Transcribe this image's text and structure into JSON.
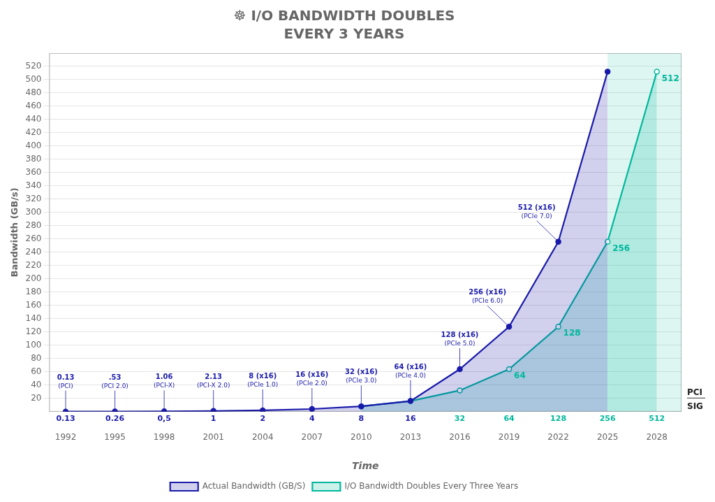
{
  "chart_data": {
    "type": "line",
    "title": "☸ I/O BANDWIDTH DOUBLES",
    "subtitle": "EVERY 3 YEARS",
    "xlabel": "Time",
    "ylabel": "Bandwidth (GB/s)",
    "series": [
      {
        "name": "Actual Bandwidth (GB/S)",
        "type": "area",
        "color": "#1a1aaa",
        "marker": "circle",
        "x": [
          1992,
          1995,
          1998,
          2001,
          2004,
          2007,
          2010,
          2013,
          2016,
          2019,
          2022,
          2025
        ],
        "values": [
          0.13,
          0.26,
          0.5,
          1,
          2,
          4,
          8,
          16,
          64,
          128,
          256,
          512
        ]
      },
      {
        "name": "I/O Bandwidth Doubles Every Three Years",
        "type": "area",
        "color": "#00b89c",
        "marker": "hollow_circle",
        "x": [
          2010,
          2013,
          2016,
          2019,
          2022,
          2025,
          2028
        ],
        "values": [
          8,
          16,
          32,
          64,
          128,
          256,
          512
        ]
      }
    ],
    "xlim": [
      1991,
      2029.5
    ],
    "ylim": [
      0,
      540
    ],
    "xticks": [
      1992,
      1995,
      1998,
      2001,
      2004,
      2007,
      2010,
      2013,
      2016,
      2019,
      2022,
      2025,
      2028
    ],
    "yticks": [
      20,
      40,
      60,
      80,
      100,
      120,
      140,
      160,
      180,
      200,
      220,
      240,
      260,
      280,
      300,
      320,
      340,
      360,
      380,
      400,
      420,
      440,
      460,
      480,
      500,
      520
    ],
    "grid": "y",
    "legend": "bottom",
    "shaded_region": {
      "from": 2025,
      "to": 2029.5,
      "color": "#00b89c"
    },
    "annotations": [
      {
        "x": 1992,
        "y": 0.13,
        "text": "0.13",
        "subtext": "(PCI)",
        "color": "#1a1aaa"
      },
      {
        "x": 1995,
        "y": 0.26,
        "text": ".53",
        "subtext": "(PCI 2.0)",
        "color": "#1a1aaa"
      },
      {
        "x": 1998,
        "y": 0.5,
        "text": "1.06",
        "subtext": "(PCI-X)",
        "color": "#1a1aaa"
      },
      {
        "x": 2001,
        "y": 1,
        "text": "2.13",
        "subtext": "(PCI-X 2.0)",
        "color": "#1a1aaa"
      },
      {
        "x": 2004,
        "y": 2,
        "text": "8 (x16)",
        "subtext": "(PCIe 1.0)",
        "color": "#1a1aaa"
      },
      {
        "x": 2007,
        "y": 4,
        "text": "16 (x16)",
        "subtext": "(PCIe 2.0)",
        "color": "#1a1aaa"
      },
      {
        "x": 2010,
        "y": 8,
        "text": "32 (x16)",
        "subtext": "(PCIe 3.0)",
        "color": "#1a1aaa"
      },
      {
        "x": 2013,
        "y": 16,
        "text": "64 (x16)",
        "subtext": "(PCIe 4.0)",
        "color": "#1a1aaa"
      },
      {
        "x": 2016,
        "y": 64,
        "text": "128 (x16)",
        "subtext": "(PCIe 5.0)",
        "color": "#1a1aaa"
      },
      {
        "x": 2019,
        "y": 128,
        "text": "256 (x16)",
        "subtext": "(PCIe 6.0)",
        "color": "#1a1aaa"
      },
      {
        "x": 2022,
        "y": 256,
        "text": "512 (x16)",
        "subtext": "(PCIe 7.0)",
        "color": "#1a1aaa"
      }
    ],
    "bottom_labels": [
      {
        "x": 1992,
        "text": "0.13",
        "color": "#1a1aaa"
      },
      {
        "x": 1995,
        "text": "0.26",
        "color": "#1a1aaa"
      },
      {
        "x": 1998,
        "text": "0,5",
        "color": "#1a1aaa"
      },
      {
        "x": 2001,
        "text": "1",
        "color": "#1a1aaa"
      },
      {
        "x": 2004,
        "text": "2",
        "color": "#1a1aaa"
      },
      {
        "x": 2007,
        "text": "4",
        "color": "#1a1aaa"
      },
      {
        "x": 2010,
        "text": "8",
        "color": "#1a1aaa"
      },
      {
        "x": 2013,
        "text": "16",
        "color": "#1a1aaa"
      },
      {
        "x": 2016,
        "text": "32",
        "color": "#00b89c"
      },
      {
        "x": 2019,
        "text": "64",
        "color": "#00b89c"
      },
      {
        "x": 2022,
        "text": "128",
        "color": "#00b89c"
      },
      {
        "x": 2025,
        "text": "256",
        "color": "#00b89c"
      },
      {
        "x": 2028,
        "text": "512",
        "color": "#00b89c"
      }
    ],
    "point_labels": [
      {
        "x": 2019,
        "y": 64,
        "text": "64",
        "color": "#00b89c"
      },
      {
        "x": 2022,
        "y": 128,
        "text": "128",
        "color": "#00b89c"
      },
      {
        "x": 2025,
        "y": 256,
        "text": "256",
        "color": "#00b89c"
      },
      {
        "x": 2028,
        "y": 512,
        "text": "512",
        "color": "#00b89c"
      }
    ],
    "logo_text": [
      "PCI",
      "SIG"
    ]
  }
}
